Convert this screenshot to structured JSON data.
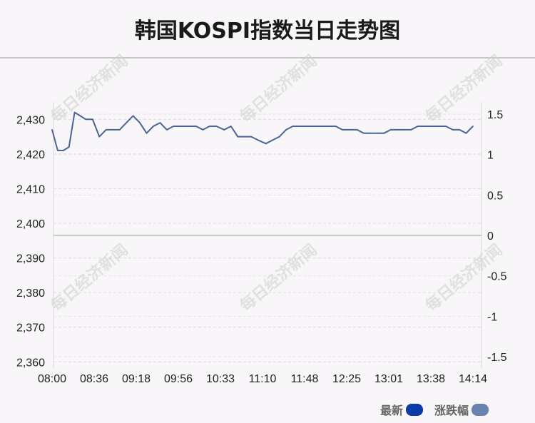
{
  "title": "韩国KOSPI指数当日走势图",
  "watermark": "每日经济新闻",
  "legend": [
    {
      "label": "最新",
      "color": "#0a3aa8"
    },
    {
      "label": "涨跌幅",
      "color": "#6a82b0"
    }
  ],
  "chart_data": {
    "type": "line",
    "title": "韩国KOSPI指数当日走势图",
    "x_tick_labels": [
      "08:00",
      "08:36",
      "09:18",
      "09:56",
      "10:33",
      "11:10",
      "11:48",
      "12:25",
      "13:01",
      "13:38",
      "14:14"
    ],
    "y_left": {
      "ticks": [
        "2,360",
        "2,370",
        "2,380",
        "2,390",
        "2,400",
        "2,410",
        "2,420",
        "2,430"
      ],
      "range": [
        2358,
        2435
      ]
    },
    "y_right": {
      "ticks": [
        "1.5",
        "1",
        "0.5",
        "0",
        "-0.5",
        "-1",
        "-1.5"
      ],
      "range": [
        -1.65,
        1.65
      ],
      "zero_line": 0
    },
    "grid": true,
    "legend_position": "bottom-right",
    "series": [
      {
        "name": "最新",
        "color": "#4a6496",
        "x": [
          "08:00",
          "08:05",
          "08:10",
          "08:15",
          "08:20",
          "08:25",
          "08:30",
          "08:36",
          "08:42",
          "08:48",
          "08:54",
          "09:00",
          "09:06",
          "09:12",
          "09:18",
          "09:24",
          "09:30",
          "09:36",
          "09:42",
          "09:48",
          "09:56",
          "10:02",
          "10:08",
          "10:14",
          "10:20",
          "10:26",
          "10:33",
          "10:39",
          "10:45",
          "10:51",
          "10:57",
          "11:03",
          "11:10",
          "11:16",
          "11:22",
          "11:28",
          "11:34",
          "11:40",
          "11:48",
          "11:54",
          "12:00",
          "12:06",
          "12:12",
          "12:18",
          "12:25",
          "12:31",
          "12:37",
          "12:43",
          "12:49",
          "12:55",
          "13:01",
          "13:07",
          "13:13",
          "13:19",
          "13:25",
          "13:31",
          "13:38",
          "13:44",
          "13:50",
          "13:56",
          "14:02",
          "14:08",
          "14:14"
        ],
        "values": [
          2427,
          2421,
          2421,
          2422,
          2432,
          2431,
          2430,
          2430,
          2425,
          2427,
          2427,
          2427,
          2429,
          2431,
          2429,
          2426,
          2428,
          2429,
          2427,
          2428,
          2428,
          2428,
          2428,
          2427,
          2428,
          2428,
          2427,
          2428,
          2425,
          2425,
          2425,
          2424,
          2423,
          2424,
          2425,
          2427,
          2428,
          2428,
          2428,
          2428,
          2428,
          2428,
          2428,
          2427,
          2427,
          2427,
          2426,
          2426,
          2426,
          2426,
          2427,
          2427,
          2427,
          2427,
          2428,
          2428,
          2428,
          2428,
          2428,
          2427,
          2427,
          2426,
          2428
        ]
      }
    ]
  }
}
